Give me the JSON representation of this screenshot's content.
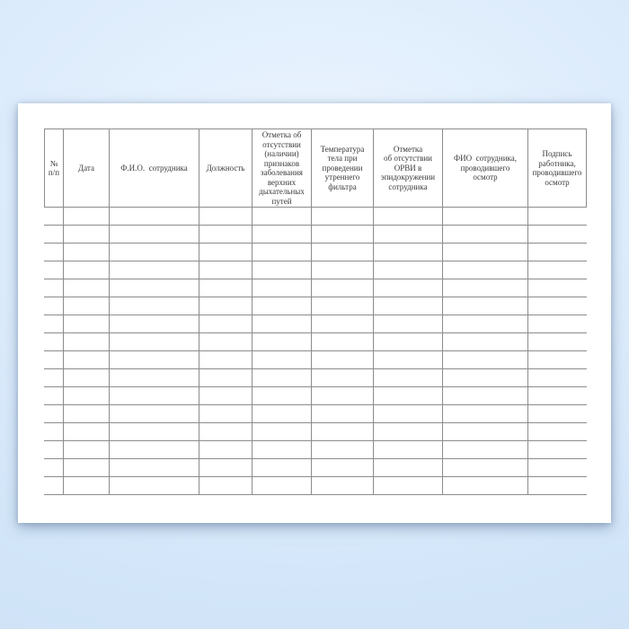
{
  "document": {
    "kind": "employee-health-screening-log-form",
    "table": {
      "columns": [
        {
          "label": "№\nп/п"
        },
        {
          "label": "Дата"
        },
        {
          "label": "Ф.И.О.  сотрудника"
        },
        {
          "label": "Должность"
        },
        {
          "label": "Отметка об\nотсутствии\n(наличии)\nпризнаков\nзаболевания\nверхних\nдыхательных\nпутей"
        },
        {
          "label": "Температура\nтела при\nпроведении\nутреннего\nфильтра"
        },
        {
          "label": "Отметка\nоб отсутствии\nОРВИ в\nэпидокружении\nсотрудника"
        },
        {
          "label": "ФИО  сотрудника,\nпроводившего\nосмотр"
        },
        {
          "label": "Подпись\nработника,\nпроводившего\nосмотр"
        }
      ],
      "row_count": 16,
      "cell_values": "empty"
    }
  },
  "colors": {
    "grid_line": "#8c8c8c",
    "header_text": "#3a3a3a",
    "paper": "#ffffff",
    "background": "#d7e9fb"
  }
}
